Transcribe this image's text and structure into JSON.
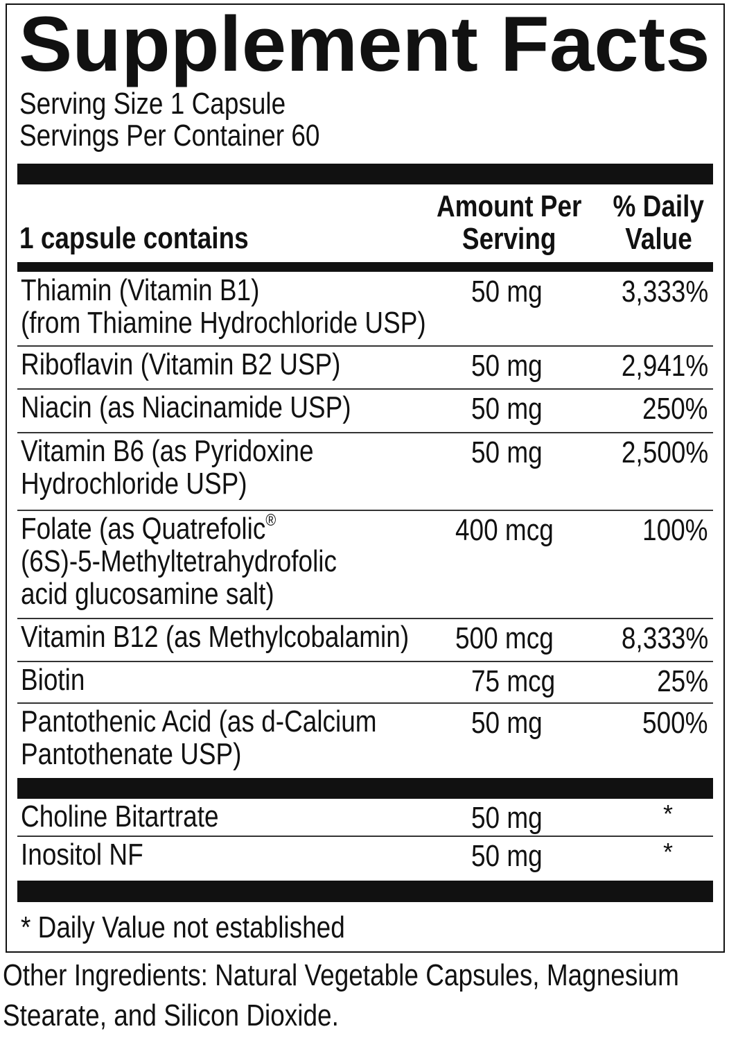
{
  "title": "Supplement Facts",
  "serving_size": "Serving Size 1 Capsule",
  "servings_per_container": "Servings Per Container 60",
  "header": {
    "contains": "1 capsule contains",
    "amount_line1": "Amount Per",
    "amount_line2": "Serving",
    "dv_line1": "% Daily",
    "dv_line2": "Value"
  },
  "nutrients": [
    {
      "lines": [
        "Thiamin (Vitamin B1)",
        "(from Thiamine Hydrochloride USP)"
      ],
      "amount": "50 mg",
      "dv": "3,333%"
    },
    {
      "lines": [
        "Riboflavin (Vitamin B2 USP)"
      ],
      "amount": "50 mg",
      "dv": "2,941%"
    },
    {
      "lines": [
        "Niacin (as Niacinamide USP)"
      ],
      "amount": "50 mg",
      "dv": "250%"
    },
    {
      "lines": [
        "Vitamin B6 (as Pyridoxine",
        "Hydrochloride USP)"
      ],
      "amount": "50 mg",
      "dv": "2,500%"
    },
    {
      "lines": [
        "Folate (as Quatrefolic",
        "(6S)-5-Methyltetrahydrofolic",
        "acid glucosamine salt)"
      ],
      "registered": "®",
      "amount": "400 mcg",
      "dv": "100%"
    },
    {
      "lines": [
        "Vitamin B12 (as Methylcobalamin)"
      ],
      "amount": "500 mcg",
      "dv": "8,333%"
    },
    {
      "lines": [
        "Biotin"
      ],
      "amount": "75 mcg",
      "dv": "25%"
    },
    {
      "lines": [
        "Pantothenic Acid (as d-Calcium",
        "Pantothenate USP)"
      ],
      "amount": "50 mg",
      "dv": "500%"
    }
  ],
  "other_nutrients": [
    {
      "name": "Choline Bitartrate",
      "amount": "50 mg",
      "dv": "*"
    },
    {
      "name": "Inositol NF",
      "amount": "50 mg",
      "dv": "*"
    }
  ],
  "footnote": "* Daily Value not established",
  "other_ingredients_line1": "Other Ingredients: Natural Vegetable Capsules, Magnesium",
  "other_ingredients_line2": "Stearate, and Silicon Dioxide."
}
